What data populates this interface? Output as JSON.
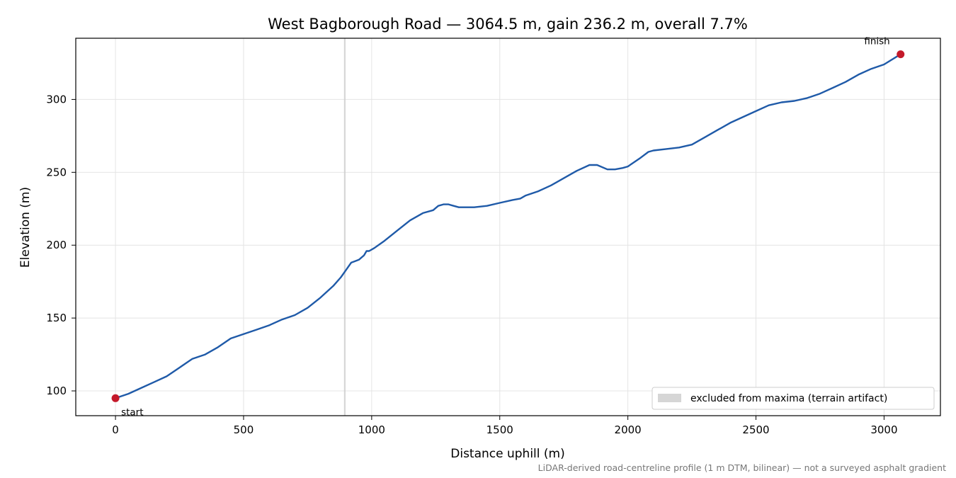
{
  "chart_data": {
    "type": "line",
    "title": "West Bagborough Road — 3064.5 m, gain 236.2 m, overall 7.7%",
    "xlabel": "Distance uphill (m)",
    "ylabel": "Elevation (m)",
    "xlim": [
      -155,
      3220
    ],
    "ylim": [
      83,
      342
    ],
    "xticks": [
      0,
      500,
      1000,
      1500,
      2000,
      2500,
      3000
    ],
    "yticks": [
      100,
      150,
      200,
      250,
      300
    ],
    "grid": true,
    "line_color": "#1f5aa8",
    "marker_color": "#c4192a",
    "excluded_color": "#cccccc",
    "excluded_region": {
      "x": [
        892,
        898
      ]
    },
    "legend": {
      "position": "lower-right",
      "entries": [
        "excluded from maxima (terrain artifact)"
      ]
    },
    "markers": [
      {
        "label": "start",
        "x": 0,
        "y": 95
      },
      {
        "label": "finish",
        "x": 3064.5,
        "y": 331
      }
    ],
    "series": [
      {
        "x": [
          0,
          50,
          100,
          150,
          200,
          250,
          300,
          350,
          400,
          450,
          500,
          550,
          600,
          650,
          700,
          750,
          800,
          850,
          880,
          900,
          920,
          935,
          950,
          970,
          980,
          990,
          1010,
          1050,
          1100,
          1150,
          1200,
          1240,
          1260,
          1280,
          1300,
          1320,
          1340,
          1360,
          1400,
          1450,
          1500,
          1550,
          1580,
          1600,
          1650,
          1700,
          1750,
          1800,
          1850,
          1880,
          1920,
          1950,
          1980,
          2000,
          2050,
          2080,
          2100,
          2150,
          2200,
          2250,
          2300,
          2350,
          2400,
          2450,
          2500,
          2550,
          2600,
          2650,
          2700,
          2750,
          2800,
          2850,
          2900,
          2950,
          3000,
          3064.5
        ],
        "y": [
          95,
          98,
          102,
          106,
          110,
          116,
          122,
          125,
          130,
          136,
          139,
          142,
          145,
          149,
          152,
          157,
          164,
          172,
          178,
          183,
          188,
          189,
          190,
          193,
          196,
          196,
          198,
          203,
          210,
          217,
          222,
          224,
          227,
          228,
          228,
          227,
          226,
          226,
          226,
          227,
          229,
          231,
          232,
          234,
          237,
          241,
          246,
          251,
          255,
          255,
          252,
          252,
          253,
          254,
          260,
          264,
          265,
          266,
          267,
          269,
          274,
          279,
          284,
          288,
          292,
          296,
          298,
          299,
          301,
          304,
          308,
          312,
          317,
          321,
          324,
          331
        ]
      }
    ]
  },
  "footer_note": "LiDAR-derived road-centreline profile (1 m DTM, bilinear) — not a surveyed asphalt gradient"
}
